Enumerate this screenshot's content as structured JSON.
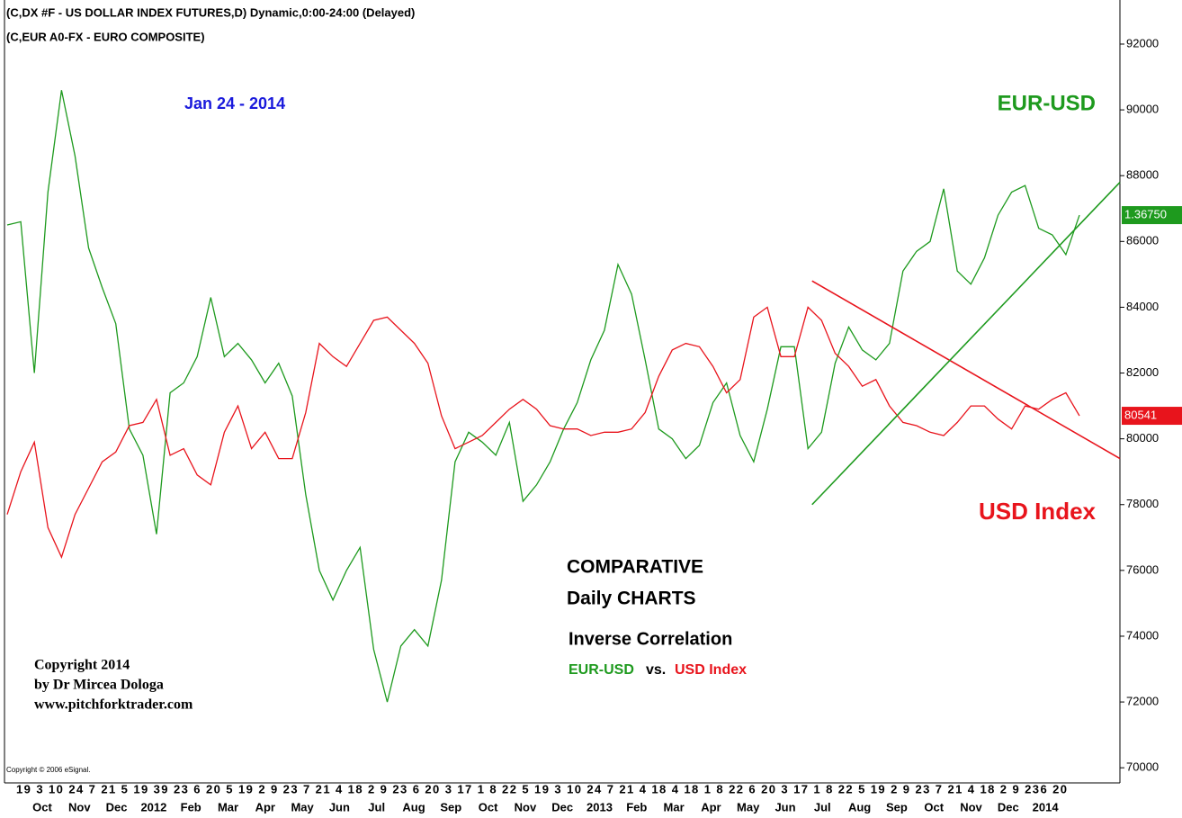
{
  "chart_data": {
    "type": "line",
    "header": [
      "(C,DX #F - US DOLLAR INDEX FUTURES,D) Dynamic,0:00-24:00 (Delayed)",
      "(C,EUR A0-FX - EURO COMPOSITE)"
    ],
    "date_label": "Jan 24 - 2014",
    "labels": {
      "eur": "EUR-USD",
      "usd": "USD Index"
    },
    "title": [
      "COMPARATIVE",
      "Daily CHARTS"
    ],
    "subtitle": "Inverse Correlation",
    "legend_text": [
      "EUR-USD",
      "vs.",
      "USD Index"
    ],
    "copyright": [
      "Copyright 2014",
      "by Dr Mircea Dologa",
      "www.pitchforktrader.com"
    ],
    "source": "Copyright © 2006 eSignal.",
    "last_labels": [
      {
        "text": "1.36750",
        "color": "#1e9a1e"
      },
      {
        "text": "80541",
        "color": "#e8141c"
      }
    ],
    "x_days": "19 3 10 24 7   21 5   19 39   23 6   20 5   19 2 9   23 7   21 4   18 2 9   23 6   20 3   17 1 8   22 5   19 3 10 24 7   21 4   18 4   18 1 8   22 6   20 3   17 1 8   22 5   19 2 9   23 7   21 4   18 2 9   236   20",
    "x_months": [
      "Oct",
      "Nov",
      "Dec",
      "2012",
      "Feb",
      "Mar",
      "Apr",
      "May",
      "Jun",
      "Jul",
      "Aug",
      "Sep",
      "Oct",
      "Nov",
      "Dec",
      "2013",
      "Feb",
      "Mar",
      "Apr",
      "May",
      "Jun",
      "Jul",
      "Aug",
      "Sep",
      "Oct",
      "Nov",
      "Dec",
      "2014"
    ],
    "categories": [
      null,
      null,
      null,
      null,
      null,
      null,
      null,
      null,
      null,
      null,
      null,
      null,
      null,
      null,
      null,
      null,
      null,
      null,
      null,
      null,
      null,
      null,
      null,
      null,
      null,
      null,
      null,
      null,
      null,
      null,
      null,
      null,
      null,
      null,
      null,
      null,
      null,
      null,
      null,
      null,
      null,
      null,
      null,
      null,
      null,
      null,
      null,
      null,
      null,
      null,
      null,
      null,
      null,
      null,
      null,
      null,
      null,
      null,
      null,
      null,
      null,
      null,
      null,
      null,
      null,
      null,
      null,
      null,
      null,
      null,
      null,
      null,
      null,
      null,
      null,
      null,
      null,
      null,
      null,
      null
    ],
    "series": [
      {
        "name": "EUR-USD",
        "color": "#1e9a1e",
        "values": [
          86500,
          86600,
          82000,
          87500,
          90600,
          88600,
          85800,
          84600,
          83500,
          80300,
          79500,
          77100,
          81400,
          81700,
          82500,
          84300,
          82500,
          82900,
          82400,
          81700,
          82300,
          81300,
          78300,
          76000,
          75100,
          76000,
          76700,
          73600,
          72000,
          73700,
          74200,
          73700,
          75700,
          79300,
          80200,
          79900,
          79500,
          80500,
          78100,
          78600,
          79300,
          80300,
          81100,
          82400,
          83300,
          85300,
          84400,
          82400,
          80300,
          80000,
          79400,
          79800,
          81100,
          81700,
          80100,
          79300,
          80900,
          82800,
          82800,
          79700,
          80200,
          82300,
          83400,
          82700,
          82400,
          82900,
          85100,
          85700,
          86000,
          87600,
          85100,
          84700,
          85500,
          86800,
          87500,
          87700,
          86400,
          86200,
          85600,
          86800
        ]
      },
      {
        "name": "USD Index",
        "color": "#e8141c",
        "values": [
          77700,
          79000,
          79900,
          77300,
          76400,
          77700,
          78500,
          79300,
          79600,
          80400,
          80500,
          81200,
          79500,
          79700,
          78900,
          78600,
          80200,
          81000,
          79700,
          80200,
          79400,
          79400,
          80800,
          82900,
          82500,
          82200,
          82900,
          83600,
          83700,
          83300,
          82900,
          82300,
          80700,
          79700,
          79900,
          80100,
          80500,
          80900,
          81200,
          80900,
          80400,
          80300,
          80300,
          80100,
          80200,
          80200,
          80300,
          80800,
          81900,
          82700,
          82900,
          82800,
          82200,
          81400,
          81800,
          83700,
          84000,
          82500,
          82500,
          84000,
          83600,
          82600,
          82200,
          81600,
          81800,
          81000,
          80500,
          80400,
          80200,
          80100,
          80500,
          81000,
          81000,
          80600,
          80300,
          81000,
          80900,
          81200,
          81400,
          80700
        ]
      }
    ],
    "trendlines": [
      {
        "color": "#e8141c",
        "values": [
          84800,
          79400
        ]
      },
      {
        "color": "#1e9a1e",
        "values": [
          78000,
          87800
        ]
      }
    ],
    "ylim": [
      69540,
      93340
    ],
    "yticks": [
      70000,
      72000,
      74000,
      76000,
      78000,
      80000,
      82000,
      84000,
      86000,
      88000,
      90000,
      92000
    ]
  }
}
